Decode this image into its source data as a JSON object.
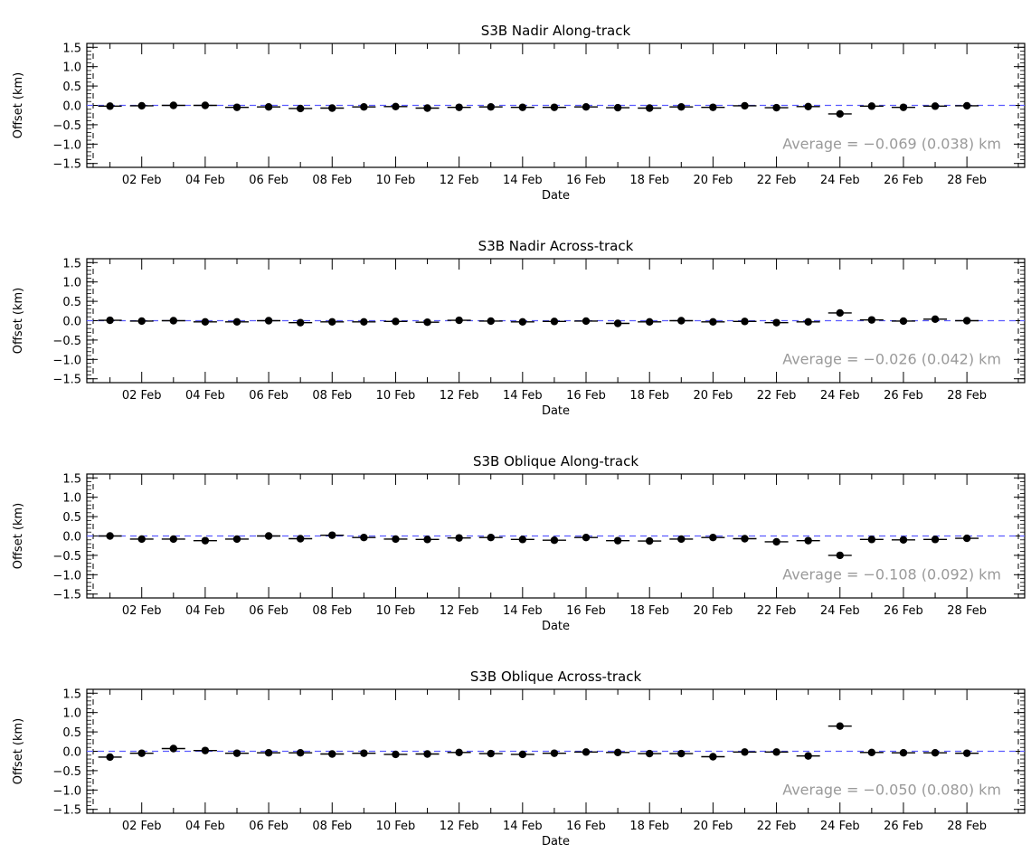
{
  "chart_data": [
    {
      "type": "scatter",
      "title": "S3B Nadir Along-track",
      "xlabel": "Date",
      "ylabel": "Offset (km)",
      "ylim": [
        -1.6,
        1.6
      ],
      "y_ticks": [
        "-1.5",
        "-1.0",
        "-0.5",
        "0.0",
        "0.5",
        "1.0",
        "1.5"
      ],
      "x_tick_labels": [
        "02 Feb",
        "04 Feb",
        "06 Feb",
        "08 Feb",
        "10 Feb",
        "12 Feb",
        "14 Feb",
        "16 Feb",
        "18 Feb",
        "20 Feb",
        "22 Feb",
        "24 Feb",
        "26 Feb",
        "28 Feb"
      ],
      "x": [
        "01 Feb",
        "02 Feb",
        "03 Feb",
        "04 Feb",
        "05 Feb",
        "06 Feb",
        "07 Feb",
        "08 Feb",
        "09 Feb",
        "10 Feb",
        "11 Feb",
        "12 Feb",
        "13 Feb",
        "14 Feb",
        "15 Feb",
        "16 Feb",
        "17 Feb",
        "18 Feb",
        "19 Feb",
        "20 Feb",
        "21 Feb",
        "22 Feb",
        "23 Feb",
        "24 Feb",
        "25 Feb",
        "26 Feb",
        "27 Feb",
        "28 Feb"
      ],
      "values": [
        -0.02,
        -0.01,
        0.0,
        0.0,
        -0.05,
        -0.04,
        -0.08,
        -0.07,
        -0.04,
        -0.03,
        -0.07,
        -0.05,
        -0.04,
        -0.05,
        -0.05,
        -0.04,
        -0.06,
        -0.07,
        -0.04,
        -0.05,
        -0.01,
        -0.06,
        -0.03,
        -0.22,
        -0.02,
        -0.05,
        -0.02,
        -0.01
      ],
      "average_label": "Average = −0.069 (0.038) km",
      "reference_y": 0.0
    },
    {
      "type": "scatter",
      "title": "S3B Nadir Across-track",
      "xlabel": "Date",
      "ylabel": "Offset (km)",
      "ylim": [
        -1.6,
        1.6
      ],
      "y_ticks": [
        "-1.5",
        "-1.0",
        "-0.5",
        "0.0",
        "0.5",
        "1.0",
        "1.5"
      ],
      "x_tick_labels": [
        "02 Feb",
        "04 Feb",
        "06 Feb",
        "08 Feb",
        "10 Feb",
        "12 Feb",
        "14 Feb",
        "16 Feb",
        "18 Feb",
        "20 Feb",
        "22 Feb",
        "24 Feb",
        "26 Feb",
        "28 Feb"
      ],
      "x": [
        "01 Feb",
        "02 Feb",
        "03 Feb",
        "04 Feb",
        "05 Feb",
        "06 Feb",
        "07 Feb",
        "08 Feb",
        "09 Feb",
        "10 Feb",
        "11 Feb",
        "12 Feb",
        "13 Feb",
        "14 Feb",
        "15 Feb",
        "16 Feb",
        "17 Feb",
        "18 Feb",
        "19 Feb",
        "20 Feb",
        "21 Feb",
        "22 Feb",
        "23 Feb",
        "24 Feb",
        "25 Feb",
        "26 Feb",
        "27 Feb",
        "28 Feb"
      ],
      "values": [
        0.01,
        -0.01,
        0.0,
        -0.03,
        -0.03,
        0.0,
        -0.05,
        -0.03,
        -0.03,
        -0.02,
        -0.04,
        0.01,
        -0.01,
        -0.03,
        -0.02,
        -0.01,
        -0.07,
        -0.03,
        0.0,
        -0.03,
        -0.02,
        -0.05,
        -0.03,
        0.2,
        0.02,
        -0.01,
        0.04,
        0.0
      ],
      "average_label": "Average = −0.026 (0.042) km",
      "reference_y": 0.0
    },
    {
      "type": "scatter",
      "title": "S3B Oblique Along-track",
      "xlabel": "Date",
      "ylabel": "Offset (km)",
      "ylim": [
        -1.6,
        1.6
      ],
      "y_ticks": [
        "-1.5",
        "-1.0",
        "-0.5",
        "0.0",
        "0.5",
        "1.0",
        "1.5"
      ],
      "x_tick_labels": [
        "02 Feb",
        "04 Feb",
        "06 Feb",
        "08 Feb",
        "10 Feb",
        "12 Feb",
        "14 Feb",
        "16 Feb",
        "18 Feb",
        "20 Feb",
        "22 Feb",
        "24 Feb",
        "26 Feb",
        "28 Feb"
      ],
      "x": [
        "01 Feb",
        "02 Feb",
        "03 Feb",
        "04 Feb",
        "05 Feb",
        "06 Feb",
        "07 Feb",
        "08 Feb",
        "09 Feb",
        "10 Feb",
        "11 Feb",
        "12 Feb",
        "13 Feb",
        "14 Feb",
        "15 Feb",
        "16 Feb",
        "17 Feb",
        "18 Feb",
        "19 Feb",
        "20 Feb",
        "21 Feb",
        "22 Feb",
        "23 Feb",
        "24 Feb",
        "25 Feb",
        "26 Feb",
        "27 Feb",
        "28 Feb"
      ],
      "values": [
        0.0,
        -0.08,
        -0.08,
        -0.12,
        -0.08,
        0.0,
        -0.07,
        0.02,
        -0.04,
        -0.08,
        -0.09,
        -0.05,
        -0.04,
        -0.09,
        -0.11,
        -0.04,
        -0.12,
        -0.13,
        -0.08,
        -0.04,
        -0.07,
        -0.15,
        -0.12,
        -0.5,
        -0.09,
        -0.1,
        -0.09,
        -0.06
      ],
      "average_label": "Average = −0.108 (0.092) km",
      "reference_y": 0.0
    },
    {
      "type": "scatter",
      "title": "S3B Oblique Across-track",
      "xlabel": "Date",
      "ylabel": "Offset (km)",
      "ylim": [
        -1.6,
        1.6
      ],
      "y_ticks": [
        "-1.5",
        "-1.0",
        "-0.5",
        "0.0",
        "0.5",
        "1.0",
        "1.5"
      ],
      "x_tick_labels": [
        "02 Feb",
        "04 Feb",
        "06 Feb",
        "08 Feb",
        "10 Feb",
        "12 Feb",
        "14 Feb",
        "16 Feb",
        "18 Feb",
        "20 Feb",
        "22 Feb",
        "24 Feb",
        "26 Feb",
        "28 Feb"
      ],
      "x": [
        "01 Feb",
        "02 Feb",
        "03 Feb",
        "04 Feb",
        "05 Feb",
        "06 Feb",
        "07 Feb",
        "08 Feb",
        "09 Feb",
        "10 Feb",
        "11 Feb",
        "12 Feb",
        "13 Feb",
        "14 Feb",
        "15 Feb",
        "16 Feb",
        "17 Feb",
        "18 Feb",
        "19 Feb",
        "20 Feb",
        "21 Feb",
        "22 Feb",
        "23 Feb",
        "24 Feb",
        "25 Feb",
        "26 Feb",
        "27 Feb",
        "28 Feb"
      ],
      "values": [
        -0.15,
        -0.05,
        0.07,
        0.02,
        -0.05,
        -0.04,
        -0.04,
        -0.07,
        -0.05,
        -0.08,
        -0.07,
        -0.03,
        -0.06,
        -0.08,
        -0.05,
        -0.02,
        -0.03,
        -0.06,
        -0.06,
        -0.14,
        -0.02,
        -0.02,
        -0.12,
        0.65,
        -0.03,
        -0.04,
        -0.04,
        -0.05
      ],
      "average_label": "Average = −0.050 (0.080) km",
      "reference_y": 0.0
    }
  ],
  "colors": {
    "axes": "#000000",
    "points": "#000000",
    "reference_line": "#5b5bff",
    "average_text": "#9a9a9a"
  }
}
